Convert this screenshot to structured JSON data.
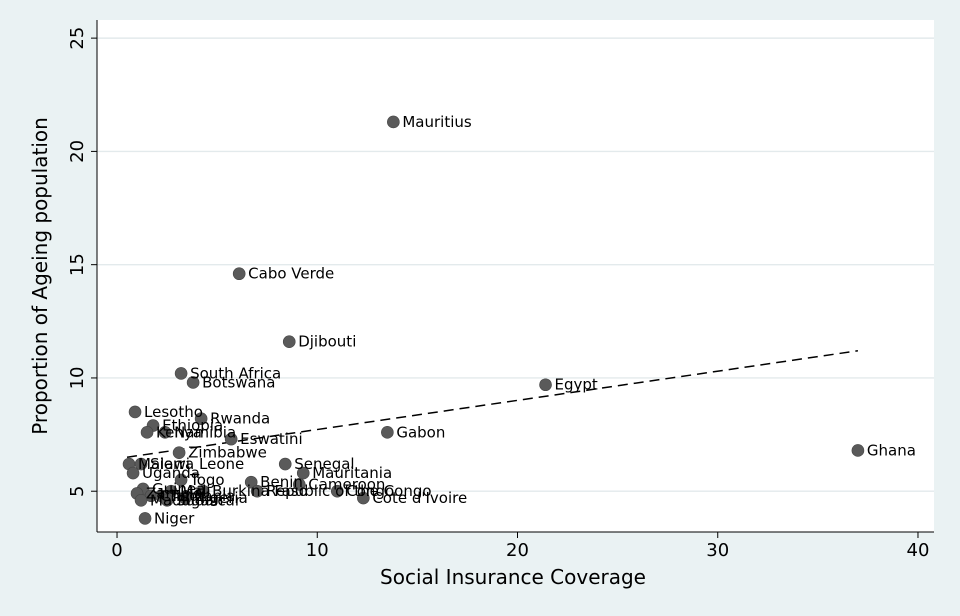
{
  "chart_data": {
    "type": "scatter",
    "xlabel": "Social Insurance Coverage",
    "ylabel": "Proportion of Ageing population",
    "xlim": [
      -1,
      40.8
    ],
    "ylim": [
      3.2,
      25.8
    ],
    "xticks": [
      0,
      10,
      20,
      30,
      40
    ],
    "yticks": [
      5,
      10,
      15,
      20,
      25
    ],
    "grid": "horizontal",
    "marker_color": "#5a5a5a",
    "background_color": "#eaf2f3",
    "plot_background_color": "#ffffff",
    "points": [
      {
        "label": "Mauritius",
        "x": 13.8,
        "y": 21.3
      },
      {
        "label": "Cabo Verde",
        "x": 6.1,
        "y": 14.6
      },
      {
        "label": "Djibouti",
        "x": 8.6,
        "y": 11.6
      },
      {
        "label": "South Africa",
        "x": 3.2,
        "y": 10.2
      },
      {
        "label": "Botswana",
        "x": 3.8,
        "y": 9.8
      },
      {
        "label": "Egypt",
        "x": 21.4,
        "y": 9.7
      },
      {
        "label": "Lesotho",
        "x": 0.9,
        "y": 8.5
      },
      {
        "label": "Rwanda",
        "x": 4.2,
        "y": 8.2
      },
      {
        "label": "Ethiopia",
        "x": 1.8,
        "y": 7.9
      },
      {
        "label": "Kenya",
        "x": 1.5,
        "y": 7.6
      },
      {
        "label": "Namibia",
        "x": 2.4,
        "y": 7.6
      },
      {
        "label": "Gabon",
        "x": 13.5,
        "y": 7.6
      },
      {
        "label": "Eswatini",
        "x": 5.7,
        "y": 7.3
      },
      {
        "label": "Zimbabwe",
        "x": 3.1,
        "y": 6.7
      },
      {
        "label": "Ghana",
        "x": 37.0,
        "y": 6.8
      },
      {
        "label": "Malawi",
        "x": 0.6,
        "y": 6.2
      },
      {
        "label": "Sierra Leone",
        "x": 1.2,
        "y": 6.2
      },
      {
        "label": "Senegal",
        "x": 8.4,
        "y": 6.2
      },
      {
        "label": "Uganda",
        "x": 0.8,
        "y": 5.8
      },
      {
        "label": "Mauritania",
        "x": 9.3,
        "y": 5.8
      },
      {
        "label": "Togo",
        "x": 3.2,
        "y": 5.5
      },
      {
        "label": "Benin",
        "x": 6.7,
        "y": 5.4
      },
      {
        "label": "Cameroon",
        "x": 9.1,
        "y": 5.3
      },
      {
        "label": "Guinea",
        "x": 1.3,
        "y": 5.1
      },
      {
        "label": "Mali",
        "x": 2.7,
        "y": 5.0
      },
      {
        "label": "Burkina Faso",
        "x": 4.3,
        "y": 5.0
      },
      {
        "label": "Republic of the Congo",
        "x": 7.0,
        "y": 5.0
      },
      {
        "label": "Zambia",
        "x": 1.0,
        "y": 4.9
      },
      {
        "label": "Chad",
        "x": 1.7,
        "y": 4.8
      },
      {
        "label": "Tanzania",
        "x": 2.2,
        "y": 4.8
      },
      {
        "label": "Nigeria",
        "x": 3.4,
        "y": 4.7
      },
      {
        "label": "Madagascar",
        "x": 1.2,
        "y": 4.6
      },
      {
        "label": "Sudan",
        "x": 2.5,
        "y": 4.6
      },
      {
        "label": "Congo",
        "x": 11.0,
        "y": 5.0
      },
      {
        "label": "Cote d'Ivoire",
        "x": 12.3,
        "y": 4.7
      },
      {
        "label": "Niger",
        "x": 1.4,
        "y": 3.8
      }
    ],
    "fit_line": {
      "style": "dashed",
      "x": [
        0.5,
        37.0
      ],
      "y": [
        6.5,
        11.2
      ]
    }
  }
}
